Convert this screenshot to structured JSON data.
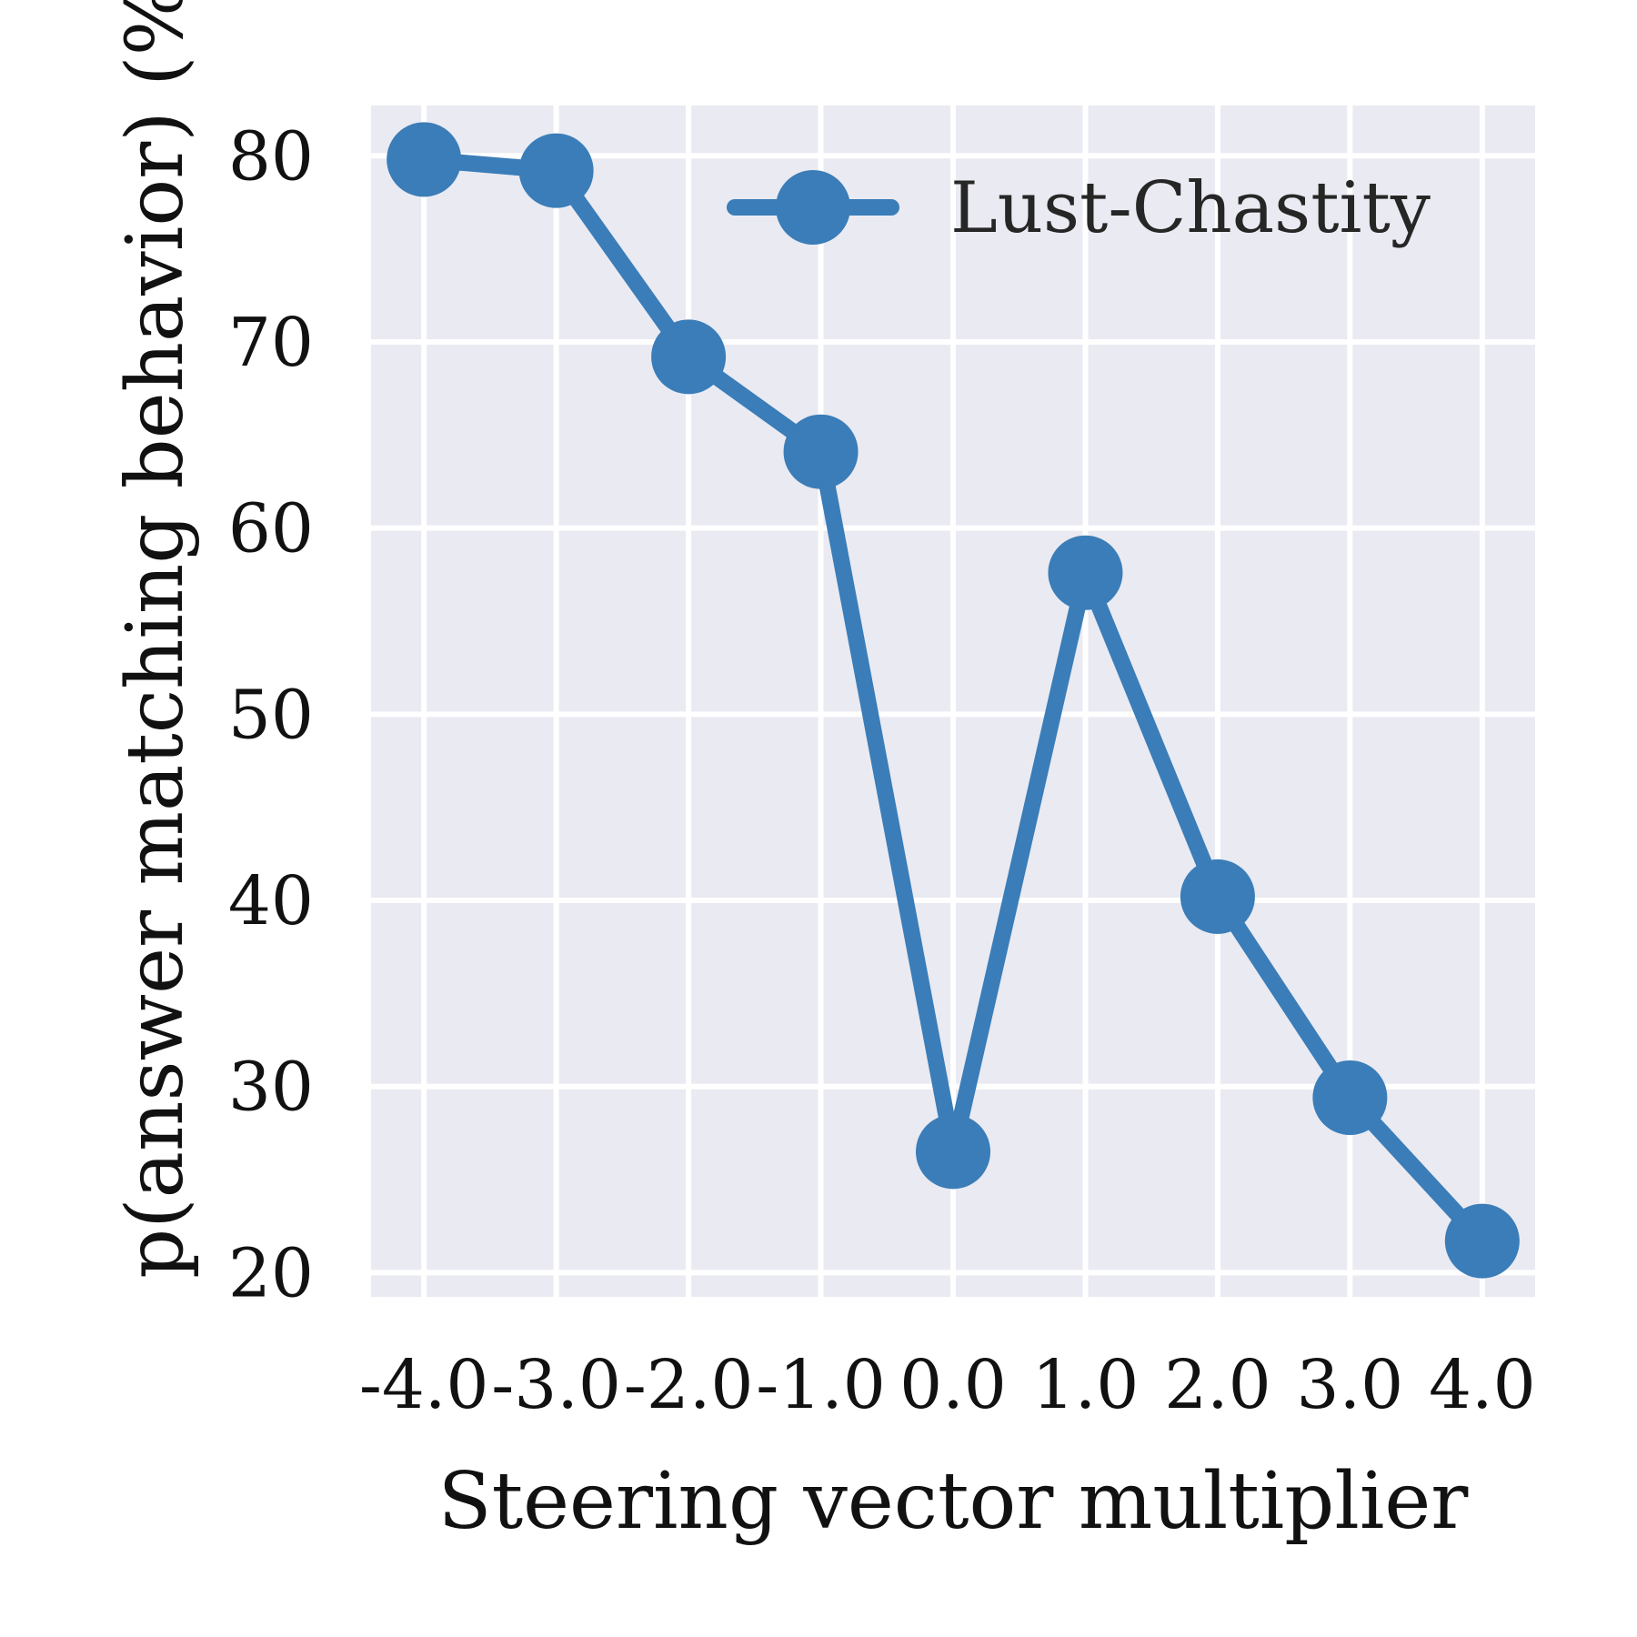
{
  "chart_data": {
    "type": "line",
    "x": [
      -4.0,
      -3.0,
      -2.0,
      -1.0,
      0.0,
      1.0,
      2.0,
      3.0,
      4.0
    ],
    "x_tick_labels": [
      "-4.0",
      "-3.0",
      "-2.0",
      "-1.0",
      "0.0",
      "1.0",
      "2.0",
      "3.0",
      "4.0"
    ],
    "series": [
      {
        "name": "Lust-Chastity",
        "color": "#3a7db8",
        "values": [
          79.8,
          79.2,
          69.2,
          64.1,
          26.5,
          57.6,
          40.2,
          29.4,
          21.7
        ]
      }
    ],
    "xlabel": "Steering vector multiplier",
    "ylabel": "p(answer matching behavior) (%)",
    "yticks": [
      20,
      30,
      40,
      50,
      60,
      70,
      80
    ],
    "xlim": [
      -4.4,
      4.4
    ],
    "ylim": [
      18.7,
      82.7
    ],
    "grid": true,
    "legend_position": "top-right",
    "plot_background": "#eaeaf2",
    "grid_color": "#ffffff"
  }
}
